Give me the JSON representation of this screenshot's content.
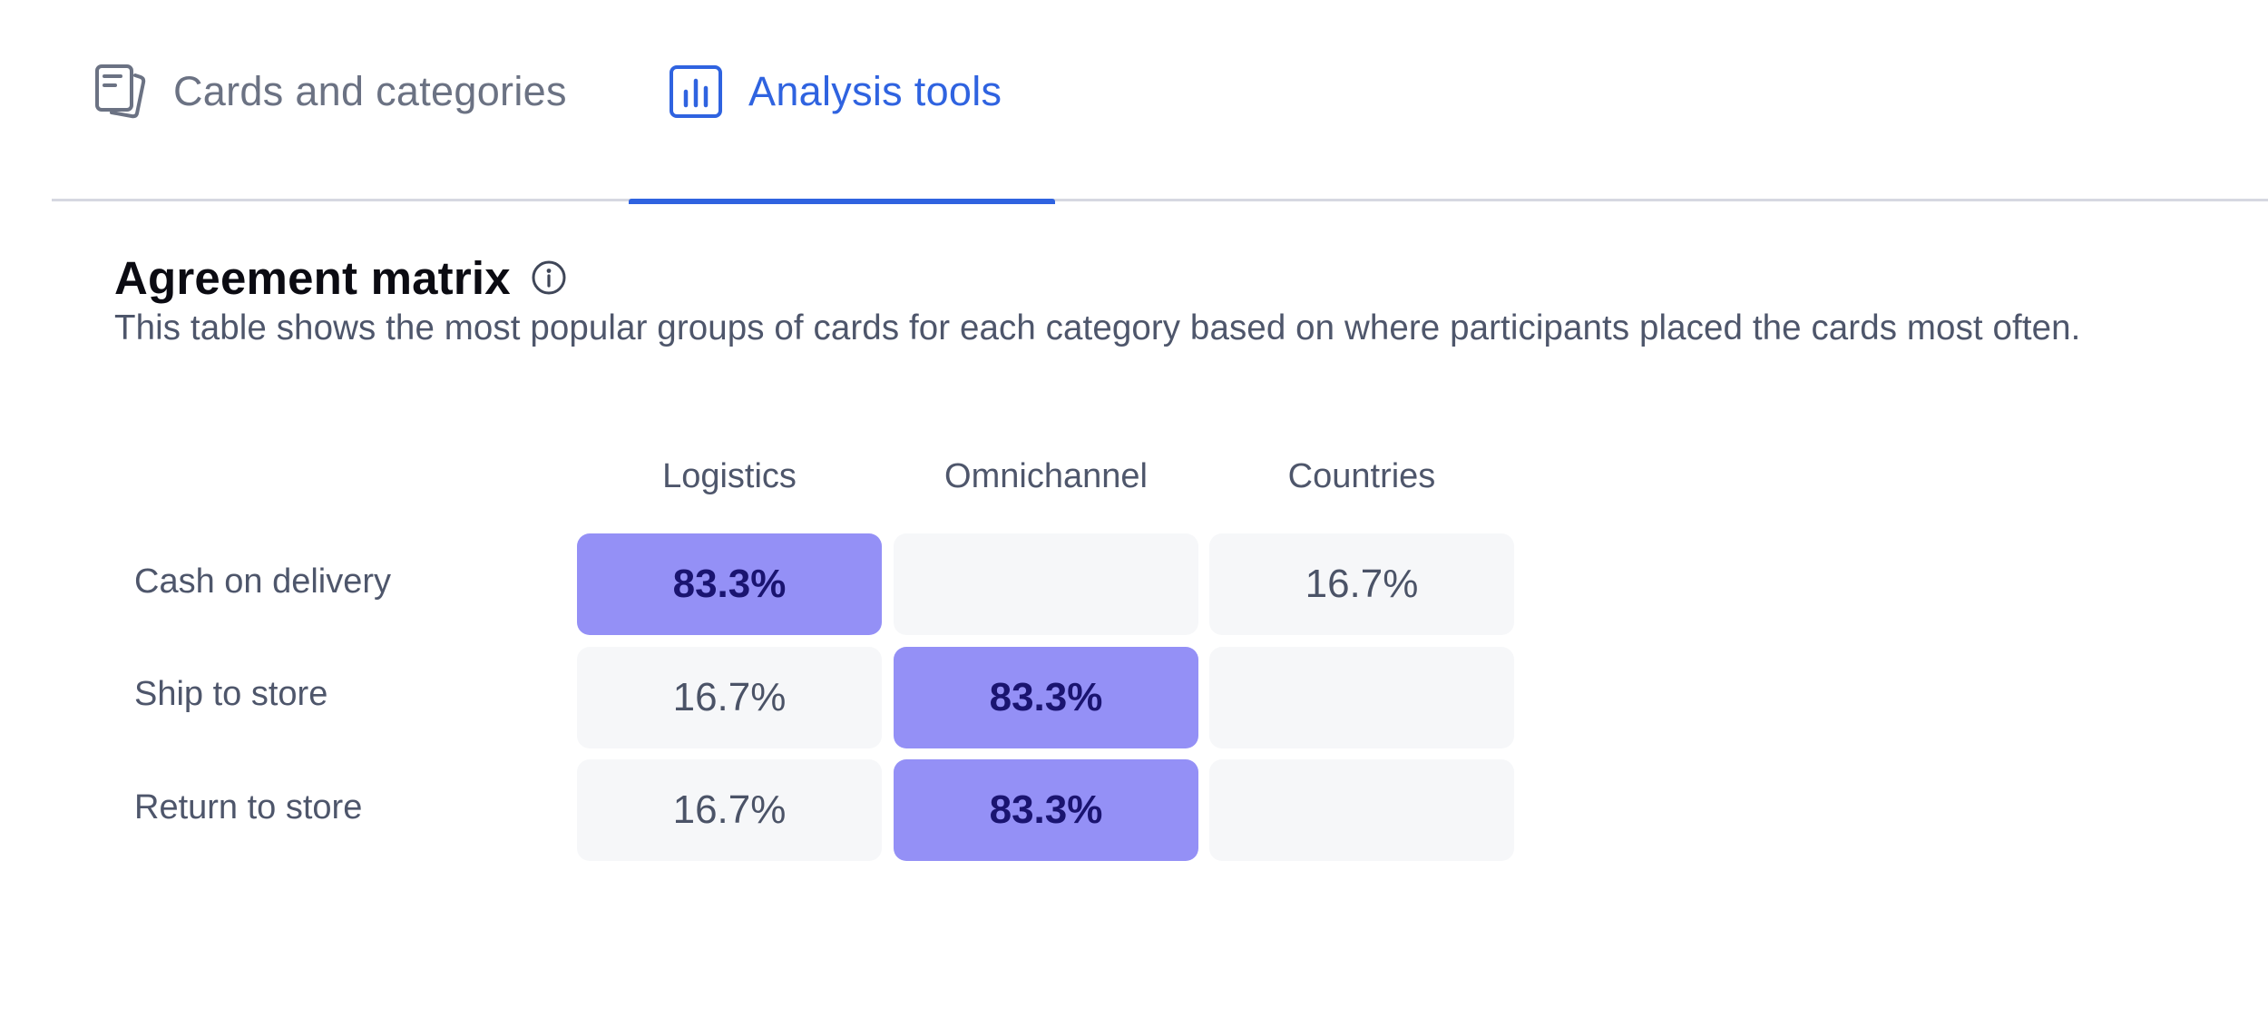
{
  "tabs": [
    {
      "label": "Cards and categories",
      "icon": "cards-icon",
      "active": false
    },
    {
      "label": "Analysis tools",
      "icon": "bar-chart-icon",
      "active": true
    }
  ],
  "section": {
    "title": "Agreement matrix",
    "info_icon": "info-icon",
    "description": "This table shows the most popular groups of cards for each category based on where participants placed the cards most often."
  },
  "matrix": {
    "columns": [
      "Logistics",
      "Omnichannel",
      "Countries"
    ],
    "rows": [
      {
        "label": "Cash on delivery",
        "cells": [
          "83.3%",
          "",
          "16.7%"
        ],
        "highlight": [
          true,
          false,
          false
        ]
      },
      {
        "label": "Ship to store",
        "cells": [
          "16.7%",
          "83.3%",
          ""
        ],
        "highlight": [
          false,
          true,
          false
        ]
      },
      {
        "label": "Return to store",
        "cells": [
          "16.7%",
          "83.3%",
          ""
        ],
        "highlight": [
          false,
          true,
          false
        ]
      }
    ]
  },
  "colors": {
    "accent": "#2f63e0",
    "highlight_cell": "#9490f6",
    "highlight_text": "#1a1470",
    "empty_cell": "#f6f7f9",
    "divider": "#d6d8e1"
  }
}
